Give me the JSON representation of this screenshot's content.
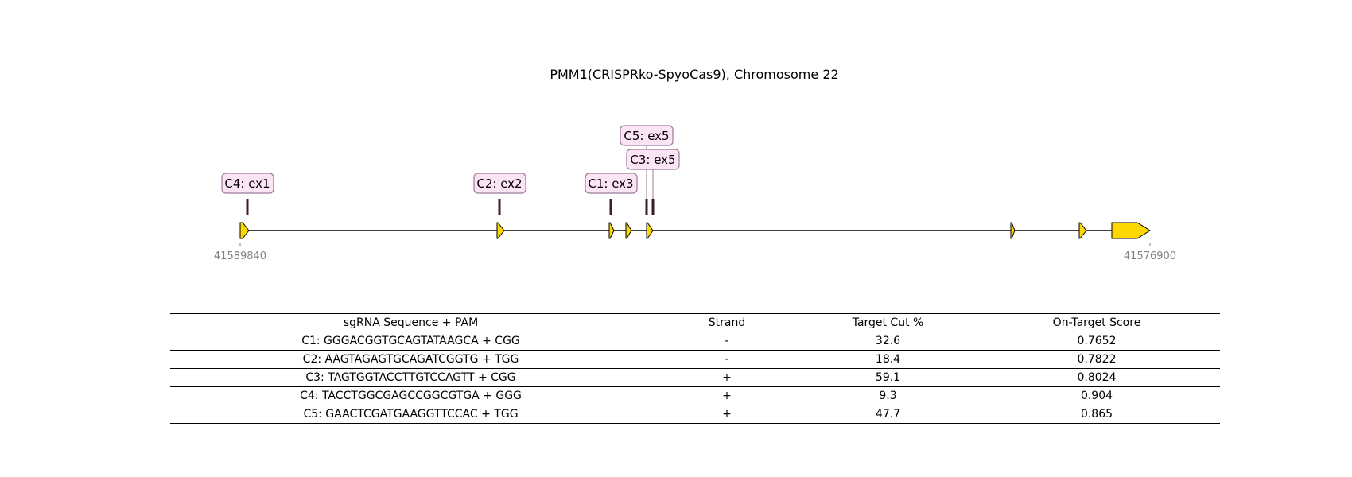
{
  "title": "PMM1(CRISPRko-SpyoCas9), Chromosome 22",
  "gene_model": {
    "start_coord": "41589840",
    "end_coord": "41576900",
    "exon_color": "#FFD700",
    "cut_color": "#3A1D2A",
    "label_fill": "#FCE4F7",
    "label_border": "#9C7A96"
  },
  "cut_sites": [
    {
      "label": "C4: ex1"
    },
    {
      "label": "C2: ex2"
    },
    {
      "label": "C1: ex3"
    },
    {
      "label": "C5: ex5"
    },
    {
      "label": "C3: ex5"
    }
  ],
  "table": {
    "headers": [
      "sgRNA Sequence + PAM",
      "Strand",
      "Target Cut %",
      "On-Target Score"
    ],
    "rows": [
      [
        "C1: GGGACGGTGCAGTATAAGCA + CGG",
        "-",
        "32.6",
        "0.7652"
      ],
      [
        "C2: AAGTAGAGTGCAGATCGGTG + TGG",
        "-",
        "18.4",
        "0.7822"
      ],
      [
        "C3: TAGTGGTACCTTGTCCAGTT + CGG",
        "+",
        "59.1",
        "0.8024"
      ],
      [
        "C4: TACCTGGCGAGCCGGCGTGA + GGG",
        "+",
        "9.3",
        "0.904"
      ],
      [
        "C5: GAACTCGATGAAGGTTCCAC + TGG",
        "+",
        "47.7",
        "0.865"
      ]
    ]
  }
}
